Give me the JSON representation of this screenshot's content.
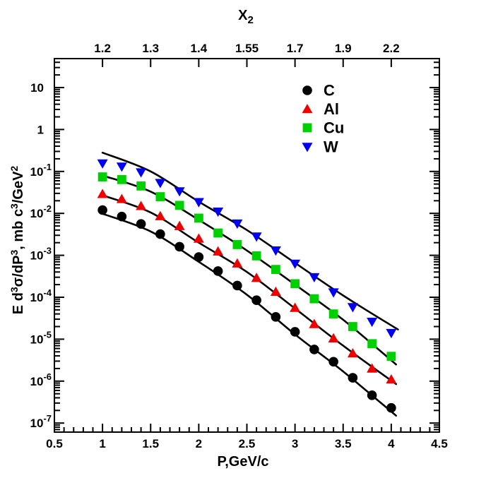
{
  "chart_data": {
    "type": "scatter",
    "description": "Invariant cross section vs momentum for four nuclear targets, log y scale, with fit curves",
    "background": "#ffffff",
    "x_axis": {
      "label": "P,GeV/c",
      "range": [
        0.5,
        4.5
      ],
      "major_ticks": [
        0.5,
        1,
        1.5,
        2,
        2.5,
        3,
        3.5,
        4,
        4.5
      ],
      "tick_labels": [
        "0.5",
        "1",
        "1.5",
        "2",
        "2.5",
        "3",
        "3.5",
        "4",
        "4.5"
      ],
      "minor_step": 0.1
    },
    "top_axis": {
      "label_parts": [
        {
          "text": "X"
        },
        {
          "text": "2",
          "script": "sub"
        }
      ],
      "ticks_at_P": [
        1,
        1.5,
        2,
        2.5,
        3,
        3.5,
        4
      ],
      "tick_labels": [
        "1.2",
        "1.3",
        "1.4",
        "1.55",
        "1.7",
        "1.9",
        "2.2"
      ]
    },
    "y_axis": {
      "label_parts": [
        {
          "text": "E d"
        },
        {
          "text": "3",
          "script": "sup"
        },
        {
          "text": "σ/dP"
        },
        {
          "text": "3",
          "script": "sup"
        },
        {
          "text": ", mb c"
        },
        {
          "text": "3",
          "script": "sup"
        },
        {
          "text": "/GeV"
        },
        {
          "text": "2",
          "script": "sup"
        }
      ],
      "scale": "log",
      "range_exponents": [
        -7.2,
        1.69
      ],
      "decades": [
        1,
        0,
        -1,
        -2,
        -3,
        -4,
        -5,
        -6,
        -7
      ],
      "decade_labels": [
        {
          "base": "10",
          "exp": ""
        },
        {
          "base": "1",
          "exp": ""
        },
        {
          "base": "10",
          "exp": "-1"
        },
        {
          "base": "10",
          "exp": "-2"
        },
        {
          "base": "10",
          "exp": "-3"
        },
        {
          "base": "10",
          "exp": "-4"
        },
        {
          "base": "10",
          "exp": "-5"
        },
        {
          "base": "10",
          "exp": "-6"
        },
        {
          "base": "10",
          "exp": "-7"
        }
      ]
    },
    "x_points": [
      1.0,
      1.2,
      1.4,
      1.6,
      1.8,
      2.0,
      2.2,
      2.4,
      2.6,
      2.8,
      3.0,
      3.2,
      3.4,
      3.6,
      3.8,
      4.0
    ],
    "series": [
      {
        "name": "C",
        "marker": "circle",
        "color": "#000000",
        "values": [
          0.012,
          0.0084,
          0.0056,
          0.0032,
          0.0016,
          0.00091,
          0.00042,
          0.00019,
          8.5e-05,
          3.4e-05,
          1.5e-05,
          5.7e-06,
          2.9e-06,
          1.2e-06,
          4.6e-07,
          2.3e-07
        ],
        "fit_curve": {
          "P": [
            1.0,
            1.5,
            2.0,
            2.5,
            3.0,
            3.5,
            4.05
          ],
          "values": [
            0.0098,
            0.0037,
            0.0007,
            0.000115,
            1.3e-05,
            1.7e-06,
            1.5e-07
          ]
        }
      },
      {
        "name": "Al",
        "marker": "triangle-up",
        "color": "#ee0000",
        "values": [
          0.029,
          0.022,
          0.015,
          0.0086,
          0.005,
          0.0025,
          0.00124,
          0.00064,
          0.00029,
          0.000135,
          5.6e-05,
          2.3e-05,
          1.05e-05,
          4.6e-06,
          2e-06,
          1.1e-06
        ],
        "fit_curve": {
          "P": [
            1.0,
            1.5,
            2.0,
            2.5,
            3.0,
            3.5,
            4.05
          ],
          "values": [
            0.027,
            0.0105,
            0.002,
            0.0004,
            5.4e-05,
            7e-06,
            8.5e-07
          ]
        }
      },
      {
        "name": "Cu",
        "marker": "square",
        "color": "#00d000",
        "values": [
          0.074,
          0.064,
          0.045,
          0.025,
          0.0155,
          0.0077,
          0.0034,
          0.0018,
          0.00097,
          0.00046,
          0.00021,
          9.2e-05,
          4e-05,
          2e-05,
          7.8e-06,
          3.9e-06
        ],
        "fit_curve": {
          "P": [
            1.0,
            1.5,
            2.0,
            2.5,
            3.0,
            3.5,
            4.05
          ],
          "values": [
            0.08,
            0.033,
            0.007,
            0.0013,
            0.0002,
            2.9e-05,
            2.5e-06
          ]
        }
      },
      {
        "name": "W",
        "marker": "triangle-down",
        "color": "#0000ee",
        "values": [
          0.155,
          0.13,
          0.095,
          0.053,
          0.0335,
          0.0185,
          0.011,
          0.0057,
          0.0028,
          0.0013,
          0.00063,
          0.0003,
          0.00013,
          5.8e-05,
          2.6e-05,
          1.4e-05
        ],
        "fit_curve": {
          "P": [
            1.0,
            1.5,
            2.0,
            2.5,
            3.0,
            3.5,
            4.07
          ],
          "values": [
            0.28,
            0.1,
            0.019,
            0.004,
            0.00066,
            0.00011,
            1.7e-05
          ]
        }
      }
    ],
    "legend": {
      "position": "top-right",
      "entries": [
        "C",
        "Al",
        "Cu",
        "W"
      ]
    },
    "fit_line_color": "#000000"
  }
}
